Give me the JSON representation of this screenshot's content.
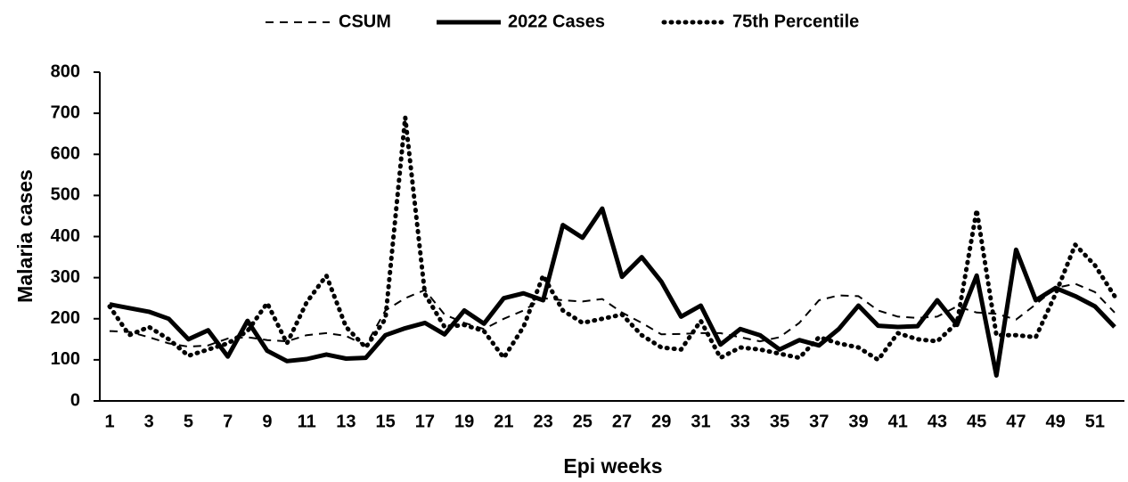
{
  "chart_data": {
    "type": "line",
    "x_label": "Epi weeks",
    "y_label": "Malaria cases",
    "categories": [
      1,
      null,
      3,
      null,
      5,
      null,
      7,
      null,
      9,
      null,
      11,
      null,
      13,
      null,
      15,
      null,
      17,
      null,
      19,
      null,
      21,
      null,
      23,
      null,
      25,
      null,
      27,
      null,
      29,
      null,
      31,
      null,
      33,
      null,
      35,
      null,
      37,
      null,
      39,
      null,
      41,
      null,
      43,
      null,
      45,
      null,
      47,
      null,
      49,
      null,
      51,
      null
    ],
    "ylim": [
      0,
      800
    ],
    "yticks": [
      0,
      100,
      200,
      300,
      400,
      500,
      600,
      700,
      800
    ],
    "grid": false,
    "legend": "top",
    "series": [
      {
        "name": "CSUM",
        "color": "#000000",
        "style": "dashed",
        "values": [
          170,
          168,
          155,
          140,
          132,
          135,
          152,
          155,
          148,
          145,
          160,
          165,
          158,
          135,
          220,
          250,
          270,
          210,
          190,
          175,
          200,
          220,
          250,
          245,
          242,
          248,
          215,
          190,
          162,
          163,
          165,
          165,
          155,
          145,
          155,
          190,
          245,
          257,
          255,
          220,
          205,
          202,
          205,
          230,
          215,
          212,
          198,
          235,
          275,
          285,
          265,
          215
        ]
      },
      {
        "name": "2022 Cases",
        "color": "#000000",
        "style": "solid",
        "values": [
          235,
          226,
          217,
          200,
          150,
          172,
          108,
          195,
          122,
          97,
          102,
          113,
          103,
          105,
          160,
          177,
          190,
          162,
          220,
          188,
          250,
          262,
          245,
          428,
          397,
          468,
          302,
          350,
          290,
          205,
          232,
          137,
          175,
          160,
          125,
          148,
          135,
          175,
          232,
          183,
          180,
          182,
          245,
          185,
          305,
          62,
          368,
          245,
          275,
          255,
          230,
          180
        ]
      },
      {
        "name": "75th Percentile",
        "color": "#000000",
        "style": "dotted",
        "values": [
          230,
          160,
          180,
          150,
          110,
          125,
          140,
          170,
          238,
          140,
          240,
          305,
          180,
          130,
          200,
          690,
          260,
          180,
          185,
          170,
          105,
          180,
          305,
          220,
          190,
          200,
          210,
          160,
          130,
          125,
          195,
          105,
          130,
          125,
          115,
          105,
          155,
          140,
          130,
          100,
          165,
          150,
          145,
          190,
          465,
          160,
          160,
          155,
          260,
          380,
          330,
          255
        ]
      }
    ]
  }
}
